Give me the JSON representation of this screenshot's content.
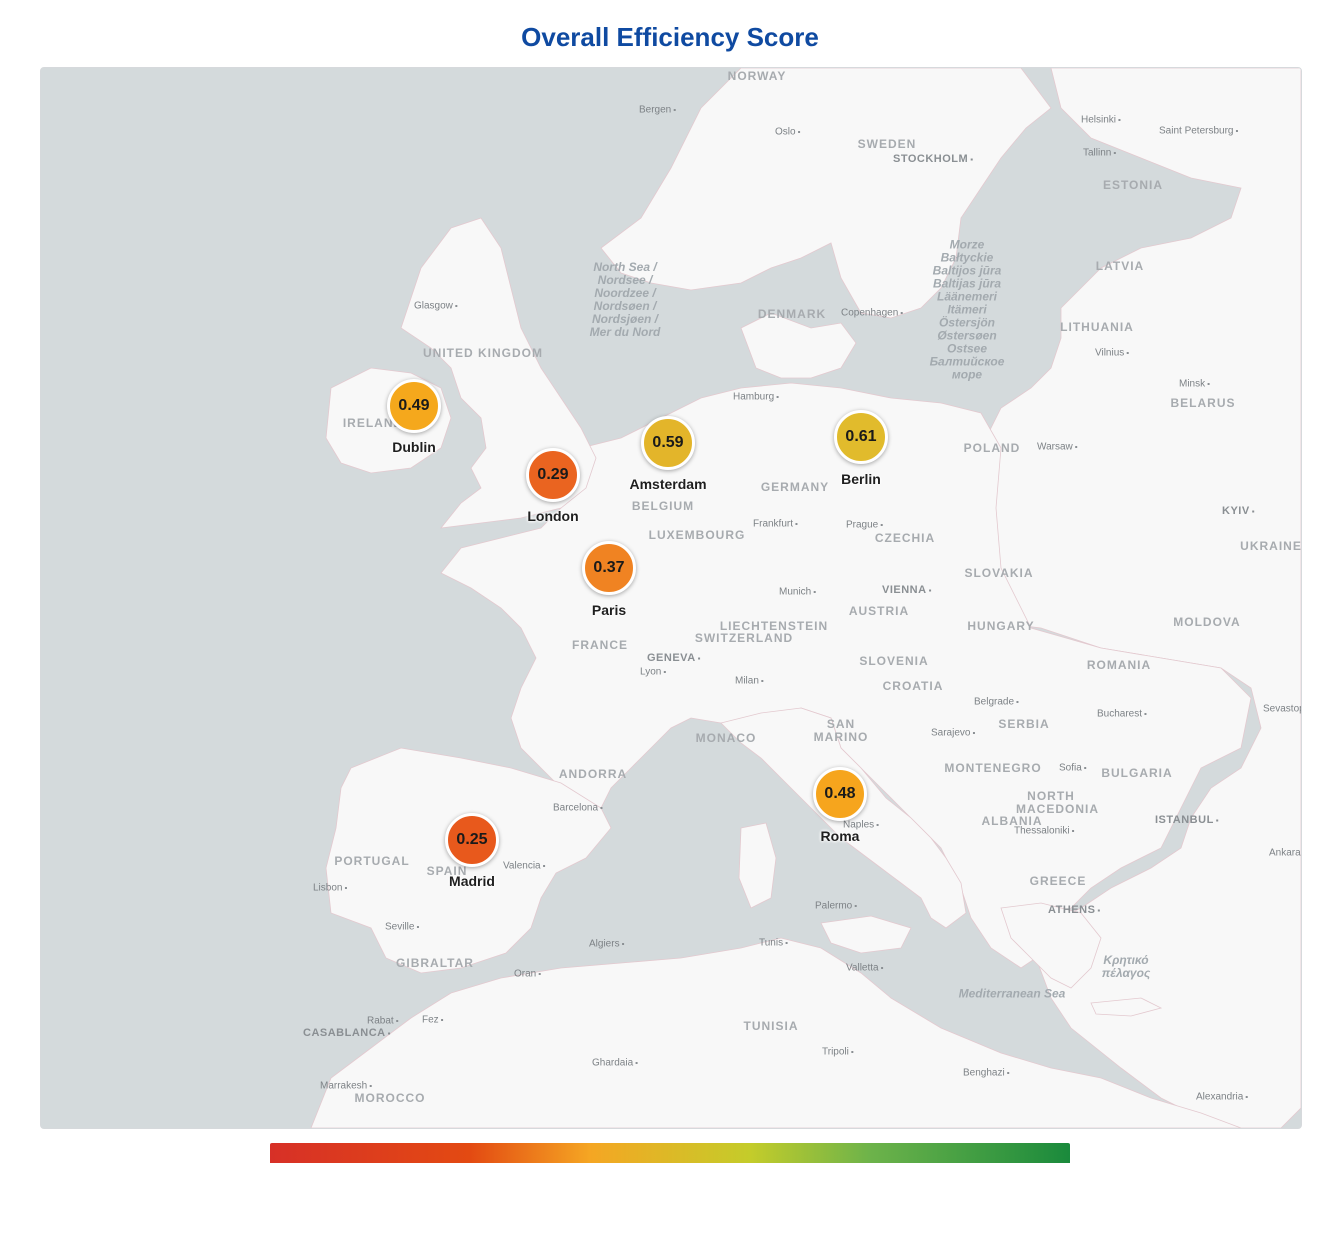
{
  "title": "Overall Efficiency Score",
  "colors": {
    "title": "#0f4aa1",
    "water": "#d4dadc",
    "land": "#f8f8f8",
    "scale": [
      "#d73027",
      "#e34a12",
      "#f5a623",
      "#c4cc2a",
      "#6db34a",
      "#1a8a3c"
    ]
  },
  "markers": [
    {
      "name": "Dublin",
      "score": "0.49",
      "color": "#f5a81c"
    },
    {
      "name": "London",
      "score": "0.29",
      "color": "#ea6420"
    },
    {
      "name": "Amsterdam",
      "score": "0.59",
      "color": "#e3b52a"
    },
    {
      "name": "Berlin",
      "score": "0.61",
      "color": "#e1bb2c"
    },
    {
      "name": "Paris",
      "score": "0.37",
      "color": "#f08322"
    },
    {
      "name": "Roma",
      "score": "0.48",
      "color": "#f6a51d"
    },
    {
      "name": "Madrid",
      "score": "0.25",
      "color": "#e8591c"
    }
  ],
  "countries": [
    "NORWAY",
    "SWEDEN",
    "ESTONIA",
    "LATVIA",
    "LITHUANIA",
    "BELARUS",
    "DENMARK",
    "UNITED KINGDOM",
    "IRELAND",
    "POLAND",
    "GERMANY",
    "BELGIUM",
    "LUXEMBOURG",
    "CZECHIA",
    "UKRAINE",
    "SLOVAKIA",
    "AUSTRIA",
    "LIECHTENSTEIN",
    "SWITZERLAND",
    "HUNGARY",
    "MOLDOVA",
    "FRANCE",
    "SLOVENIA",
    "CROATIA",
    "ROMANIA",
    "SERBIA",
    "SAN MARINO",
    "MONACO",
    "ANDORRA",
    "MONTENEGRO",
    "BULGARIA",
    "NORTH MACEDONIA",
    "ALBANIA",
    "PORTUGAL",
    "SPAIN",
    "GREECE",
    "GIBRALTAR",
    "TUNISIA",
    "MOROCCO"
  ],
  "seas": [
    "North Sea / Nordsee / Noordzee / Nordsøen / Nordsjøen / Mer du Nord",
    "Morze Bałtyckie Baltijos jūra Baltijas jūra Läänemeri Itämeri Östersjön Østersøen Ostsee Балтийское море",
    "Mediterranean Sea",
    "Κρητικό πέλαγος"
  ],
  "cities": [
    "Bergen",
    "Oslo",
    "STOCKHOLM",
    "Helsinki",
    "Saint Petersburg",
    "Tallinn",
    "Glasgow",
    "Copenhagen",
    "Vilnius",
    "Minsk",
    "Hamburg",
    "Warsaw",
    "KYIV",
    "Frankfurt",
    "Prague",
    "Munich",
    "VIENNA",
    "GENEVA",
    "Lyon",
    "Milan",
    "Belgrade",
    "Bucharest",
    "Sevastopol",
    "Sarajevo",
    "Sofia",
    "Barcelona",
    "Valencia",
    "Naples",
    "ISTANBUL",
    "Thessaloniki",
    "Ankara",
    "Lisbon",
    "Seville",
    "Palermo",
    "ATHENS",
    "Algiers",
    "Tunis",
    "Valletta",
    "Oran",
    "Rabat",
    "Fez",
    "CASABLANCA",
    "Tripoli",
    "Ghardaia",
    "Benghazi",
    "Marrakesh",
    "Alexandria"
  ]
}
